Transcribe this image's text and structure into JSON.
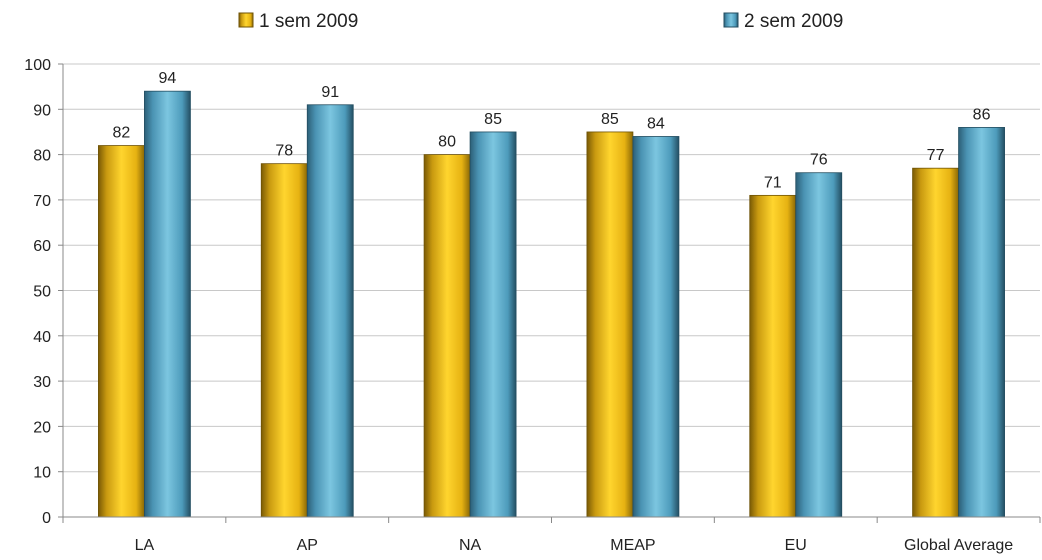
{
  "chart_data": {
    "type": "bar",
    "categories": [
      "LA",
      "AP",
      "NA",
      "MEAP",
      "EU",
      "Global Average"
    ],
    "series": [
      {
        "name": "1 sem 2009",
        "values": [
          82,
          78,
          80,
          85,
          71,
          77
        ]
      },
      {
        "name": "2 sem 2009",
        "values": [
          94,
          91,
          85,
          84,
          76,
          86
        ]
      }
    ],
    "ylim": [
      0,
      100
    ],
    "yticks": [
      0,
      10,
      20,
      30,
      40,
      50,
      60,
      70,
      80,
      90,
      100
    ],
    "grid": true,
    "legend_position": "top",
    "colors": {
      "series1": "#F2C21B",
      "series2": "#5AAFCB"
    }
  }
}
